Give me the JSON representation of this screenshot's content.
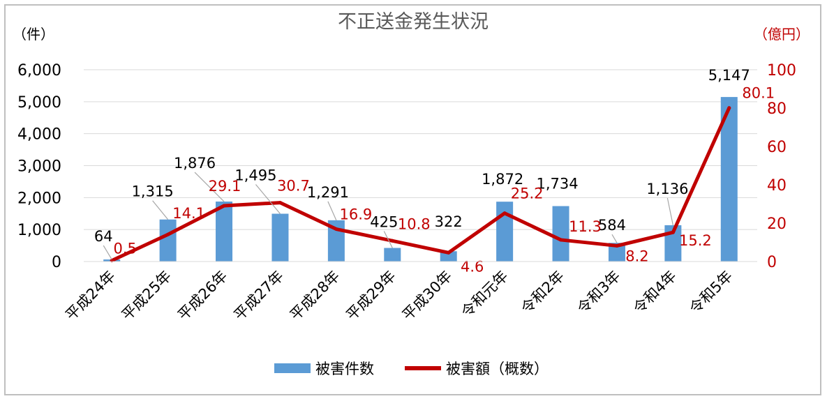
{
  "chart_data": {
    "type": "bar",
    "title": "不正送金発生状況",
    "left_axis_unit": "（件）",
    "right_axis_unit": "（億円）",
    "categories": [
      "平成24年",
      "平成25年",
      "平成26年",
      "平成27年",
      "平成28年",
      "平成29年",
      "平成30年",
      "令和元年",
      "令和2年",
      "令和3年",
      "令和4年",
      "令和5年"
    ],
    "series": [
      {
        "name": "被害件数",
        "type": "bar",
        "axis": "left",
        "color": "#5b9bd5",
        "values": [
          64,
          1315,
          1876,
          1495,
          1291,
          425,
          322,
          1872,
          1734,
          584,
          1136,
          5147
        ],
        "labels": [
          "64",
          "1,315",
          "1,876",
          "1,495",
          "1,291",
          "425",
          "322",
          "1,872",
          "1,734",
          "584",
          "1,136",
          "5,147"
        ]
      },
      {
        "name": "被害額（概数）",
        "type": "line",
        "axis": "right",
        "color": "#c00000",
        "values": [
          0.5,
          14.1,
          29.1,
          30.7,
          16.9,
          10.8,
          4.6,
          25.2,
          11.3,
          8.2,
          15.2,
          80.1
        ],
        "labels": [
          "0.5",
          "14.1",
          "29.1",
          "30.7",
          "16.9",
          "10.8",
          "4.6",
          "25.2",
          "11.3",
          "8.2",
          "15.2",
          "80.1"
        ]
      }
    ],
    "left_axis": {
      "min": 0,
      "max": 6000,
      "ticks": [
        "0",
        "1,000",
        "2,000",
        "3,000",
        "4,000",
        "5,000",
        "6,000"
      ]
    },
    "right_axis": {
      "min": 0,
      "max": 100,
      "ticks": [
        "0",
        "20",
        "40",
        "60",
        "80",
        "100"
      ]
    },
    "grid": true,
    "legend_position": "bottom"
  }
}
